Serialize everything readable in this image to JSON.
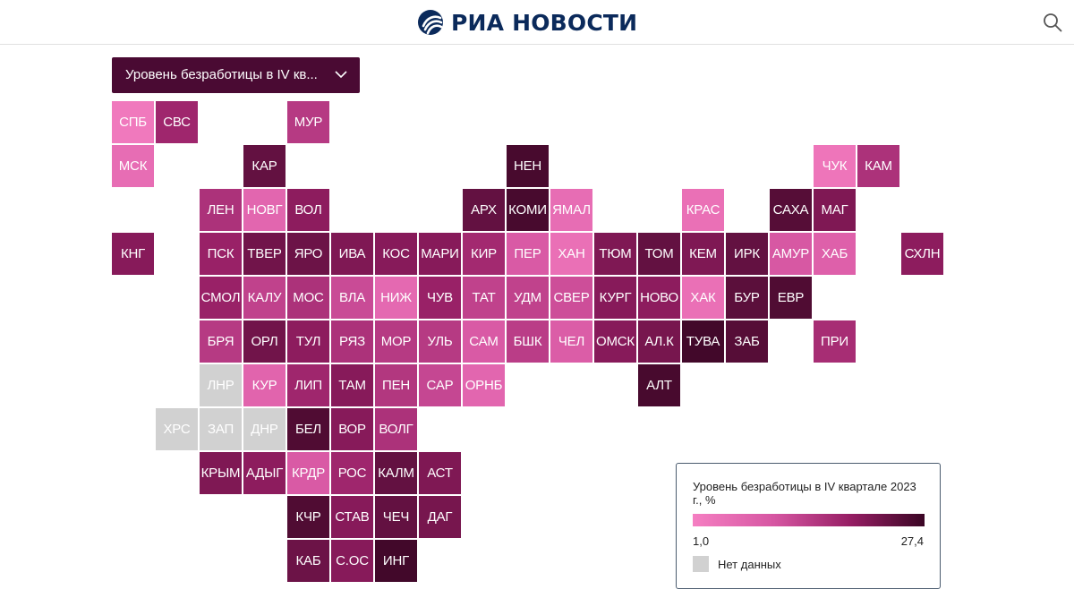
{
  "header": {
    "logo_text": "РИА НОВОСТИ",
    "logo_icon": "ria-logo-icon",
    "search_icon": "search-icon"
  },
  "dropdown": {
    "label": "Уровень безработицы в IV кв...",
    "icon": "chevron-down-icon"
  },
  "colors": {
    "header_text": "#0b2a5b",
    "dropdown_bg": "#4a0a33",
    "scale_min": "#f57fc2",
    "scale_max": "#3a0624",
    "no_data": "#d1d1d1"
  },
  "legend": {
    "title": "Уровень безработицы в IV квартале 2023 г., %",
    "min": "1,0",
    "max": "27,4",
    "no_data_label": "Нет данных"
  },
  "tiles": [
    {
      "label": "СПБ",
      "row": 0,
      "col": 0,
      "shade": 0.05
    },
    {
      "label": "СВС",
      "row": 0,
      "col": 1,
      "shade": 0.62
    },
    {
      "label": "МУР",
      "row": 0,
      "col": 4,
      "shade": 0.5
    },
    {
      "label": "МСК",
      "row": 1,
      "col": 0,
      "shade": 0.15
    },
    {
      "label": "КАР",
      "row": 1,
      "col": 3,
      "shade": 0.85
    },
    {
      "label": "НЕН",
      "row": 1,
      "col": 9,
      "shade": 0.95
    },
    {
      "label": "ЧУК",
      "row": 1,
      "col": 16,
      "shade": 0.08
    },
    {
      "label": "КАМ",
      "row": 1,
      "col": 17,
      "shade": 0.55
    },
    {
      "label": "ЛЕН",
      "row": 2,
      "col": 2,
      "shade": 0.55
    },
    {
      "label": "НОВГ",
      "row": 2,
      "col": 3,
      "shade": 0.2
    },
    {
      "label": "ВОЛ",
      "row": 2,
      "col": 4,
      "shade": 0.7
    },
    {
      "label": "АРХ",
      "row": 2,
      "col": 8,
      "shade": 0.85
    },
    {
      "label": "КОМИ",
      "row": 2,
      "col": 9,
      "shade": 0.95
    },
    {
      "label": "ЯМАЛ",
      "row": 2,
      "col": 10,
      "shade": 0.15
    },
    {
      "label": "КРАС",
      "row": 2,
      "col": 13,
      "shade": 0.12
    },
    {
      "label": "САХА",
      "row": 2,
      "col": 15,
      "shade": 0.9
    },
    {
      "label": "МАГ",
      "row": 2,
      "col": 16,
      "shade": 0.75
    },
    {
      "label": "КНГ",
      "row": 3,
      "col": 0,
      "shade": 0.72
    },
    {
      "label": "ПСК",
      "row": 3,
      "col": 2,
      "shade": 0.65
    },
    {
      "label": "ТВЕР",
      "row": 3,
      "col": 3,
      "shade": 0.8
    },
    {
      "label": "ЯРО",
      "row": 3,
      "col": 4,
      "shade": 0.82
    },
    {
      "label": "ИВА",
      "row": 3,
      "col": 5,
      "shade": 0.75
    },
    {
      "label": "КОС",
      "row": 3,
      "col": 6,
      "shade": 0.72
    },
    {
      "label": "МАРИ",
      "row": 3,
      "col": 7,
      "shade": 0.72
    },
    {
      "label": "КИР",
      "row": 3,
      "col": 8,
      "shade": 0.6
    },
    {
      "label": "ПЕР",
      "row": 3,
      "col": 9,
      "shade": 0.3
    },
    {
      "label": "ХАН",
      "row": 3,
      "col": 10,
      "shade": 0.12
    },
    {
      "label": "ТЮМ",
      "row": 3,
      "col": 11,
      "shade": 0.75
    },
    {
      "label": "ТОМ",
      "row": 3,
      "col": 12,
      "shade": 0.85
    },
    {
      "label": "КЕМ",
      "row": 3,
      "col": 13,
      "shade": 0.75
    },
    {
      "label": "ИРК",
      "row": 3,
      "col": 14,
      "shade": 0.85
    },
    {
      "label": "АМУР",
      "row": 3,
      "col": 15,
      "shade": 0.32
    },
    {
      "label": "ХАБ",
      "row": 3,
      "col": 16,
      "shade": 0.25
    },
    {
      "label": "СХЛН",
      "row": 3,
      "col": 18,
      "shade": 0.7
    },
    {
      "label": "СМОЛ",
      "row": 4,
      "col": 2,
      "shade": 0.65
    },
    {
      "label": "КАЛУ",
      "row": 4,
      "col": 3,
      "shade": 0.45
    },
    {
      "label": "МОС",
      "row": 4,
      "col": 4,
      "shade": 0.55
    },
    {
      "label": "ВЛА",
      "row": 4,
      "col": 5,
      "shade": 0.4
    },
    {
      "label": "НИЖ",
      "row": 4,
      "col": 6,
      "shade": 0.18
    },
    {
      "label": "ЧУВ",
      "row": 4,
      "col": 7,
      "shade": 0.65
    },
    {
      "label": "ТАТ",
      "row": 4,
      "col": 8,
      "shade": 0.45
    },
    {
      "label": "УДМ",
      "row": 4,
      "col": 9,
      "shade": 0.45
    },
    {
      "label": "СВЕР",
      "row": 4,
      "col": 10,
      "shade": 0.38
    },
    {
      "label": "КУРГ",
      "row": 4,
      "col": 11,
      "shade": 0.72
    },
    {
      "label": "НОВО",
      "row": 4,
      "col": 12,
      "shade": 0.7
    },
    {
      "label": "ХАК",
      "row": 4,
      "col": 13,
      "shade": 0.12
    },
    {
      "label": "БУР",
      "row": 4,
      "col": 14,
      "shade": 0.88
    },
    {
      "label": "ЕВР",
      "row": 4,
      "col": 15,
      "shade": 0.92
    },
    {
      "label": "БРЯ",
      "row": 5,
      "col": 2,
      "shade": 0.5
    },
    {
      "label": "ОРЛ",
      "row": 5,
      "col": 3,
      "shade": 0.8
    },
    {
      "label": "ТУЛ",
      "row": 5,
      "col": 4,
      "shade": 0.7
    },
    {
      "label": "РЯЗ",
      "row": 5,
      "col": 5,
      "shade": 0.55
    },
    {
      "label": "МОР",
      "row": 5,
      "col": 6,
      "shade": 0.5
    },
    {
      "label": "УЛЬ",
      "row": 5,
      "col": 7,
      "shade": 0.5
    },
    {
      "label": "САМ",
      "row": 5,
      "col": 8,
      "shade": 0.3
    },
    {
      "label": "БШК",
      "row": 5,
      "col": 9,
      "shade": 0.48
    },
    {
      "label": "ЧЕЛ",
      "row": 5,
      "col": 10,
      "shade": 0.28
    },
    {
      "label": "ОМСК",
      "row": 5,
      "col": 11,
      "shade": 0.72
    },
    {
      "label": "АЛ.К",
      "row": 5,
      "col": 12,
      "shade": 0.78
    },
    {
      "label": "ТУВА",
      "row": 5,
      "col": 13,
      "shade": 0.97
    },
    {
      "label": "ЗАБ",
      "row": 5,
      "col": 14,
      "shade": 0.9
    },
    {
      "label": "ПРИ",
      "row": 5,
      "col": 16,
      "shade": 0.58
    },
    {
      "label": "ЛНР",
      "row": 6,
      "col": 2,
      "shade": -1
    },
    {
      "label": "КУР",
      "row": 6,
      "col": 3,
      "shade": 0.22
    },
    {
      "label": "ЛИП",
      "row": 6,
      "col": 4,
      "shade": 0.62
    },
    {
      "label": "ТАМ",
      "row": 6,
      "col": 5,
      "shade": 0.72
    },
    {
      "label": "ПЕН",
      "row": 6,
      "col": 6,
      "shade": 0.52
    },
    {
      "label": "САР",
      "row": 6,
      "col": 7,
      "shade": 0.42
    },
    {
      "label": "ОРНБ",
      "row": 6,
      "col": 8,
      "shade": 0.2
    },
    {
      "label": "АЛТ",
      "row": 6,
      "col": 12,
      "shade": 0.95
    },
    {
      "label": "ХРС",
      "row": 7,
      "col": 1,
      "shade": -1
    },
    {
      "label": "ЗАП",
      "row": 7,
      "col": 2,
      "shade": -1
    },
    {
      "label": "ДНР",
      "row": 7,
      "col": 3,
      "shade": -1
    },
    {
      "label": "БЕЛ",
      "row": 7,
      "col": 4,
      "shade": 0.92
    },
    {
      "label": "ВОР",
      "row": 7,
      "col": 5,
      "shade": 0.72
    },
    {
      "label": "ВОЛГ",
      "row": 7,
      "col": 6,
      "shade": 0.55
    },
    {
      "label": "КРЫМ",
      "row": 8,
      "col": 2,
      "shade": 0.75
    },
    {
      "label": "АДЫГ",
      "row": 8,
      "col": 3,
      "shade": 0.7
    },
    {
      "label": "КРДР",
      "row": 8,
      "col": 4,
      "shade": 0.3
    },
    {
      "label": "РОС",
      "row": 8,
      "col": 5,
      "shade": 0.62
    },
    {
      "label": "КАЛМ",
      "row": 8,
      "col": 6,
      "shade": 0.85
    },
    {
      "label": "АСТ",
      "row": 8,
      "col": 7,
      "shade": 0.75
    },
    {
      "label": "КЧР",
      "row": 9,
      "col": 4,
      "shade": 0.92
    },
    {
      "label": "СТАВ",
      "row": 9,
      "col": 5,
      "shade": 0.72
    },
    {
      "label": "ЧЕЧ",
      "row": 9,
      "col": 6,
      "shade": 0.85
    },
    {
      "label": "ДАГ",
      "row": 9,
      "col": 7,
      "shade": 0.78
    },
    {
      "label": "КАБ",
      "row": 10,
      "col": 4,
      "shade": 0.82
    },
    {
      "label": "С.ОС",
      "row": 10,
      "col": 5,
      "shade": 0.72
    },
    {
      "label": "ИНГ",
      "row": 10,
      "col": 6,
      "shade": 0.97
    }
  ]
}
